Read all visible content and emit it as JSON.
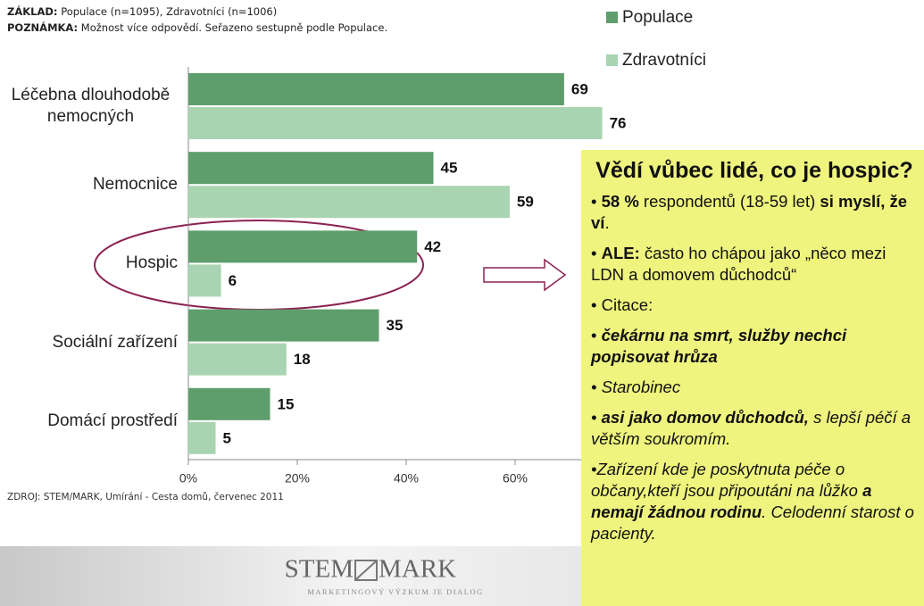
{
  "notes": [
    {
      "label": "ZÁKLAD:",
      "text": "Populace (n=1095), Zdravotníci (n=1006)"
    },
    {
      "label": "POZNÁMKA:",
      "text": "Možnost více odpovědí. Seřazeno sestupně podle Populace."
    }
  ],
  "chart_data": {
    "type": "hbar",
    "categories": [
      "Léčebna dlouhodobě nemocných",
      "Nemocnice",
      "Hospic",
      "Sociální zařízení",
      "Domácí prostředí"
    ],
    "series": [
      {
        "name": "Populace",
        "color": "#5e9e6c",
        "values": [
          69,
          45,
          42,
          35,
          15
        ]
      },
      {
        "name": "Zdravotníci",
        "color": "#a9d4b1",
        "values": [
          76,
          59,
          6,
          18,
          5
        ]
      }
    ],
    "xlim": [
      0,
      80
    ],
    "xticks": [
      {
        "value": 0,
        "label": "0%"
      },
      {
        "value": 20,
        "label": "20%"
      },
      {
        "value": 40,
        "label": "40%"
      },
      {
        "value": 60,
        "label": "60%"
      }
    ]
  },
  "source": "ZDROJ: STEM/MARK, Umírání - Cesta domů, červenec 2011",
  "callout": {
    "title": "Vědí vůbec lidé, co je hospic?",
    "items": [
      [
        "58 %",
        " respondentů (18-59 let) ",
        "si myslí, že ví",
        "."
      ],
      [
        "ALE:",
        " často ho chápou jako „něco mezi LDN a domovem důchodců“"
      ],
      [
        "Citace:"
      ],
      [
        "čekárnu na smrt, služby nechci popisovat hrůza"
      ],
      [
        "Starobinec"
      ],
      [
        "asi jako domov důchodců,",
        " s lepší péčí a větším soukromím."
      ],
      [
        "Zařízení kde je poskytnuta péče o občany,kteří jsou připoutáni na lůžko ",
        "a nemají žádnou rodinu",
        ". Celodenní starost o pacienty."
      ]
    ]
  },
  "logo": {
    "left": "STEM",
    "right": "MARK",
    "tagline": "MARKETINGOVÝ VÝZKUM JE DIALOG"
  }
}
